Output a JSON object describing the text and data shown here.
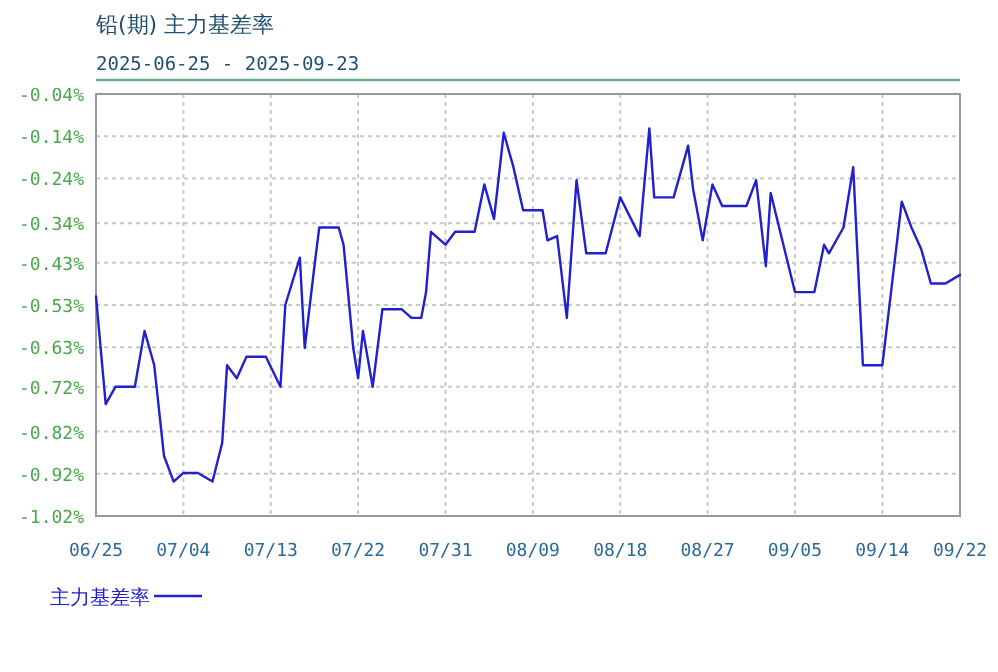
{
  "chart_data": {
    "type": "line",
    "title": "铅(期) 主力基差率",
    "subtitle": "2025-06-25 - 2025-09-23",
    "x": [
      "2025-06-25",
      "2025-06-26",
      "2025-06-27",
      "2025-06-29",
      "2025-06-30",
      "2025-07-01",
      "2025-07-02",
      "2025-07-03",
      "2025-07-04",
      "2025-07-05T12:00",
      "2025-07-07",
      "2025-07-08",
      "2025-07-08T12:00",
      "2025-07-09T12:00",
      "2025-07-10T12:00",
      "2025-07-12T12:00",
      "2025-07-14",
      "2025-07-14T12:00",
      "2025-07-16",
      "2025-07-16T12:00",
      "2025-07-17T12:00",
      "2025-07-18",
      "2025-07-20",
      "2025-07-20T12:00",
      "2025-07-21T12:00",
      "2025-07-22",
      "2025-07-22T12:00",
      "2025-07-23T12:00",
      "2025-07-24T12:00",
      "2025-07-26T12:00",
      "2025-07-27T12:00",
      "2025-07-28T12:00",
      "2025-07-29",
      "2025-07-29T12:00",
      "2025-07-31",
      "2025-08-01",
      "2025-08-03",
      "2025-08-04",
      "2025-08-05",
      "2025-08-06",
      "2025-08-07",
      "2025-08-08",
      "2025-08-10",
      "2025-08-10T12:00",
      "2025-08-11T12:00",
      "2025-08-12T12:00",
      "2025-08-13T12:00",
      "2025-08-14T12:00",
      "2025-08-16T12:00",
      "2025-08-18",
      "2025-08-20",
      "2025-08-21",
      "2025-08-21T12:00",
      "2025-08-23T12:00",
      "2025-08-25",
      "2025-08-25T12:00",
      "2025-08-26T12:00",
      "2025-08-27T12:00",
      "2025-08-28T12:00",
      "2025-08-31",
      "2025-09-01",
      "2025-09-02",
      "2025-09-02T12:00",
      "2025-09-05",
      "2025-09-07",
      "2025-09-08",
      "2025-09-08T12:00",
      "2025-09-10",
      "2025-09-11",
      "2025-09-12",
      "2025-09-14",
      "2025-09-16",
      "2025-09-17",
      "2025-09-18",
      "2025-09-19",
      "2025-09-20T12:00",
      "2025-09-22"
    ],
    "series": [
      {
        "name": "主力基差率",
        "color": "#2020d0",
        "values": [
          -0.51,
          -0.76,
          -0.72,
          -0.72,
          -0.59,
          -0.67,
          -0.88,
          -0.94,
          -0.92,
          -0.92,
          -0.94,
          -0.85,
          -0.67,
          -0.7,
          -0.65,
          -0.65,
          -0.72,
          -0.53,
          -0.42,
          -0.63,
          -0.44,
          -0.35,
          -0.35,
          -0.39,
          -0.63,
          -0.7,
          -0.59,
          -0.72,
          -0.54,
          -0.54,
          -0.56,
          -0.56,
          -0.5,
          -0.36,
          -0.39,
          -0.36,
          -0.36,
          -0.25,
          -0.33,
          -0.13,
          -0.21,
          -0.31,
          -0.31,
          -0.38,
          -0.37,
          -0.56,
          -0.24,
          -0.41,
          -0.41,
          -0.28,
          -0.37,
          -0.12,
          -0.28,
          -0.28,
          -0.16,
          -0.26,
          -0.38,
          -0.25,
          -0.3,
          -0.3,
          -0.24,
          -0.44,
          -0.27,
          -0.5,
          -0.5,
          -0.39,
          -0.41,
          -0.35,
          -0.21,
          -0.67,
          -0.67,
          -0.29,
          -0.35,
          -0.4,
          -0.48,
          -0.48,
          -0.46
        ]
      }
    ],
    "xlim": [
      "2025-06-25",
      "2025-09-22"
    ],
    "xticks": [
      {
        "value": "2025-06-25",
        "label": "06/25"
      },
      {
        "value": "2025-07-04",
        "label": "07/04"
      },
      {
        "value": "2025-07-13",
        "label": "07/13"
      },
      {
        "value": "2025-07-22",
        "label": "07/22"
      },
      {
        "value": "2025-07-31",
        "label": "07/31"
      },
      {
        "value": "2025-08-09",
        "label": "08/09"
      },
      {
        "value": "2025-08-18",
        "label": "08/18"
      },
      {
        "value": "2025-08-27",
        "label": "08/27"
      },
      {
        "value": "2025-09-05",
        "label": "09/05"
      },
      {
        "value": "2025-09-14",
        "label": "09/14"
      },
      {
        "value": "2025-09-22",
        "label": "09/22"
      }
    ],
    "ylim": [
      -1.02,
      -0.04
    ],
    "yticks": [
      {
        "value": -0.04,
        "label": "-0.04%"
      },
      {
        "value": -0.138,
        "label": "-0.14%"
      },
      {
        "value": -0.236,
        "label": "-0.24%"
      },
      {
        "value": -0.34,
        "label": "-0.34%"
      },
      {
        "value": -0.432,
        "label": "-0.43%"
      },
      {
        "value": -0.53,
        "label": "-0.53%"
      },
      {
        "value": -0.628,
        "label": "-0.63%"
      },
      {
        "value": -0.72,
        "label": "-0.72%"
      },
      {
        "value": -0.824,
        "label": "-0.82%"
      },
      {
        "value": -0.922,
        "label": "-0.92%"
      },
      {
        "value": -1.02,
        "label": "-1.02%"
      }
    ],
    "grid": true,
    "legend": "bottom"
  }
}
